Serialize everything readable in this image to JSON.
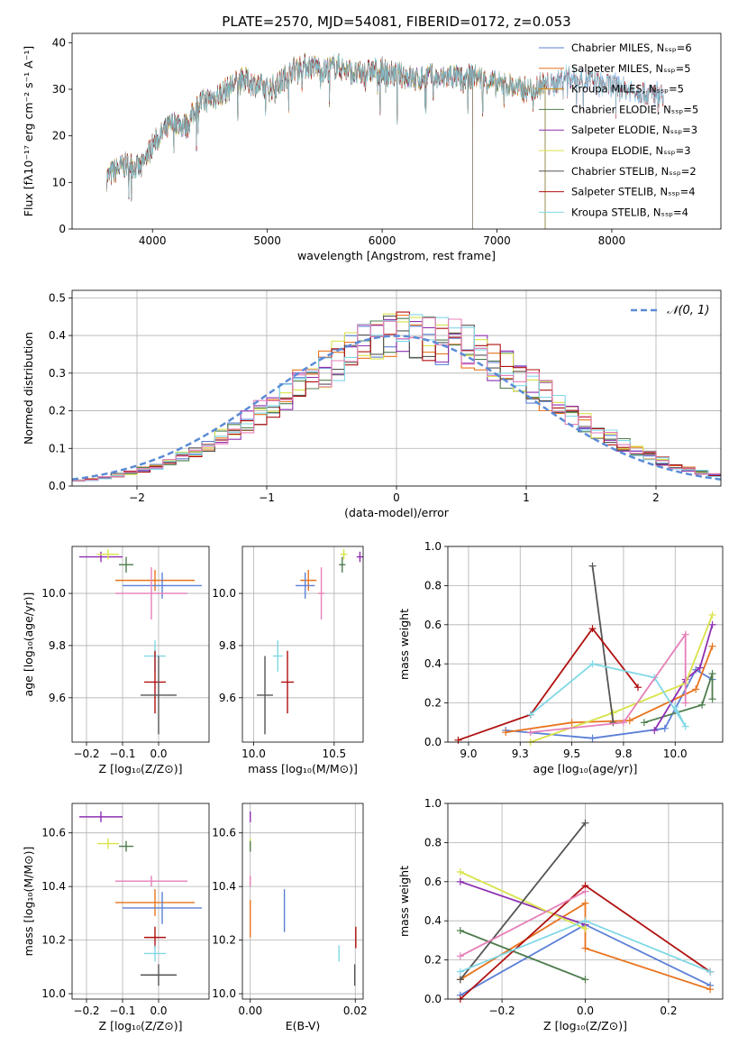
{
  "page_title": "PLATE=2570, MJD=54081, FIBERID=0172, z=0.053",
  "colors": {
    "Chabrier MILES": "#5b7fd6",
    "Salpeter MILES": "#e8741e",
    "Kroupa MILES": "#d4880a",
    "Chabrier ELODIE": "#4f7d4f",
    "Salpeter ELODIE": "#8e2fb0",
    "Kroupa ELODIE": "#d9e34a",
    "Chabrier STELIB": "#555555",
    "Salpeter STELIB": "#b01010",
    "Kroupa STELIB": "#80d8e6",
    "pink": "#e57fb8",
    "gaussian": "#5b8bd6"
  },
  "chart_data": [
    {
      "id": "spectrum",
      "type": "line",
      "title": "PLATE=2570, MJD=54081, FIBERID=0172, z=0.053",
      "xlabel": "wavelength [Angstrom, rest frame]",
      "ylabel": "Flux [fλ10⁻¹⁷ erg cm⁻² s⁻¹ A⁻¹]",
      "xlim": [
        3300,
        8950
      ],
      "ylim": [
        0,
        42
      ],
      "xticks": [
        4000,
        5000,
        6000,
        7000,
        8000
      ],
      "yticks": [
        0,
        10,
        20,
        30,
        40
      ],
      "grid": false,
      "legend_position": "top-right",
      "legend": [
        {
          "label": "Chabrier MILES, Nₛₛₚ=6",
          "color": "#5b7fd6"
        },
        {
          "label": "Salpeter MILES, Nₛₛₚ=5",
          "color": "#e8741e"
        },
        {
          "label": "Kroupa MILES, Nₛₛₚ=5",
          "color": "#d4880a"
        },
        {
          "label": "Chabrier ELODIE, Nₛₛₚ=5",
          "color": "#4f7d4f"
        },
        {
          "label": "Salpeter ELODIE, Nₛₛₚ=3",
          "color": "#8e2fb0"
        },
        {
          "label": "Kroupa ELODIE, Nₛₛₚ=3",
          "color": "#d9e34a"
        },
        {
          "label": "Chabrier STELIB, Nₛₛₚ=2",
          "color": "#555555"
        },
        {
          "label": "Salpeter STELIB, Nₛₛₚ=4",
          "color": "#b01010"
        },
        {
          "label": "Kroupa STELIB, Nₛₛₚ=4",
          "color": "#80d8e6"
        }
      ],
      "continuum": {
        "x": [
          3600,
          3700,
          3800,
          3900,
          4000,
          4100,
          4200,
          4300,
          4400,
          4500,
          4600,
          4700,
          4800,
          4900,
          5000,
          5100,
          5200,
          5300,
          5400,
          5500,
          5600,
          5700,
          5800,
          5900,
          6000,
          6100,
          6200,
          6300,
          6400,
          6500,
          6600,
          6700,
          6800,
          6900,
          7000,
          7100,
          7200,
          7300,
          7400,
          7500,
          7600,
          7700,
          7800,
          7900,
          8000,
          8100,
          8200,
          8300,
          8400,
          8500
        ],
        "y": [
          11,
          13,
          14,
          13,
          18,
          21,
          23,
          22,
          27,
          28,
          29,
          31,
          32,
          31,
          30,
          31,
          34,
          35,
          35,
          34,
          35,
          34,
          33,
          34,
          34,
          33,
          33,
          32,
          33,
          32,
          33,
          32,
          33,
          32,
          31,
          31,
          30,
          30,
          31,
          31,
          33,
          32,
          32,
          31,
          31,
          30,
          30,
          29,
          29,
          29
        ]
      },
      "spectrum_end": {
        "Kroupa STELIB": 8450,
        "Chabrier MILES": 7420,
        "Salpeter MILES": 7420,
        "Kroupa MILES": 7420,
        "Chabrier ELODIE": 6790,
        "Salpeter ELODIE": 6790,
        "Kroupa ELODIE": 6790,
        "Chabrier STELIB": 8450,
        "Salpeter STELIB": 8450
      }
    },
    {
      "id": "residuals",
      "type": "line",
      "xlabel": "(data-model)/error",
      "ylabel": "Normed distribution",
      "xlim": [
        -2.5,
        2.5
      ],
      "ylim": [
        0,
        0.52
      ],
      "xticks": [
        -2,
        -1,
        0,
        1,
        2
      ],
      "yticks": [
        0.0,
        0.1,
        0.2,
        0.3,
        0.4,
        0.5
      ],
      "grid": true,
      "legend_position": "top-right",
      "legend": [
        {
          "label": "𝒩(0, 1)",
          "color": "#5b8bd6"
        }
      ],
      "bin_width": 0.1,
      "hist_colors": [
        "#5b7fd6",
        "#e8741e",
        "#4f7d4f",
        "#8e2fb0",
        "#d9e34a",
        "#555555",
        "#b01010",
        "#80d8e6",
        "#e57fb8"
      ]
    },
    {
      "id": "age_vs_Z",
      "type": "scatter",
      "xlabel": "Z [log₁₀(Z/Z⊙)]",
      "ylabel": "age  [log₁₀(age/yr)]",
      "xlim": [
        -0.24,
        0.14
      ],
      "ylim": [
        9.43,
        10.18
      ],
      "xticks": [
        -0.2,
        -0.1,
        0.0
      ],
      "yticks": [
        9.6,
        9.8,
        10.0
      ],
      "grid": true,
      "points": [
        {
          "x": -0.16,
          "xerr": 0.06,
          "y": 10.14,
          "yerr": 0.02,
          "color": "#8e2fb0"
        },
        {
          "x": -0.14,
          "xerr": 0.03,
          "y": 10.15,
          "yerr": 0.02,
          "color": "#d9e34a"
        },
        {
          "x": -0.09,
          "xerr": 0.02,
          "y": 10.11,
          "yerr": 0.03,
          "color": "#4f7d4f"
        },
        {
          "x": -0.01,
          "xerr": 0.11,
          "y": 10.05,
          "yerr": 0.04,
          "color": "#e8741e"
        },
        {
          "x": 0.01,
          "xerr": 0.11,
          "y": 10.03,
          "yerr": 0.05,
          "color": "#5b7fd6"
        },
        {
          "x": -0.02,
          "xerr": 0.1,
          "y": 10.0,
          "yerr": 0.1,
          "color": "#e57fb8"
        },
        {
          "x": -0.01,
          "xerr": 0.03,
          "y": 9.76,
          "yerr": 0.06,
          "color": "#80d8e6"
        },
        {
          "x": -0.01,
          "xerr": 0.03,
          "y": 9.66,
          "yerr": 0.12,
          "color": "#b01010"
        },
        {
          "x": 0.0,
          "xerr": 0.05,
          "y": 9.61,
          "yerr": 0.15,
          "color": "#555555"
        }
      ]
    },
    {
      "id": "age_vs_mass",
      "type": "scatter",
      "xlabel": "mass [log₁₀(M/M⊙)]",
      "ylabel": "",
      "xlim": [
        9.93,
        10.68
      ],
      "ylim": [
        9.43,
        10.18
      ],
      "xticks": [
        10.0,
        10.5
      ],
      "yticks": [
        9.6,
        9.8,
        10.0
      ],
      "grid": true,
      "points": [
        {
          "x": 10.66,
          "xerr": 0.02,
          "y": 10.14,
          "yerr": 0.02,
          "color": "#8e2fb0"
        },
        {
          "x": 10.56,
          "xerr": 0.02,
          "y": 10.15,
          "yerr": 0.02,
          "color": "#d9e34a"
        },
        {
          "x": 10.55,
          "xerr": 0.02,
          "y": 10.11,
          "yerr": 0.03,
          "color": "#4f7d4f"
        },
        {
          "x": 10.34,
          "xerr": 0.05,
          "y": 10.05,
          "yerr": 0.04,
          "color": "#e8741e"
        },
        {
          "x": 10.32,
          "xerr": 0.06,
          "y": 10.03,
          "yerr": 0.05,
          "color": "#5b7fd6"
        },
        {
          "x": 10.42,
          "xerr": 0.02,
          "y": 10.0,
          "yerr": 0.1,
          "color": "#e57fb8"
        },
        {
          "x": 10.15,
          "xerr": 0.03,
          "y": 9.76,
          "yerr": 0.06,
          "color": "#80d8e6"
        },
        {
          "x": 10.21,
          "xerr": 0.04,
          "y": 9.66,
          "yerr": 0.12,
          "color": "#b01010"
        },
        {
          "x": 10.07,
          "xerr": 0.05,
          "y": 9.61,
          "yerr": 0.15,
          "color": "#555555"
        }
      ]
    },
    {
      "id": "massweight_vs_age",
      "type": "line",
      "xlabel": "age  [log₁₀(age/yr)]",
      "ylabel": "mass weight",
      "xlim": [
        8.9,
        10.23
      ],
      "ylim": [
        0,
        1.0
      ],
      "xticks": [
        9.0,
        9.25,
        9.5,
        9.75,
        10.0
      ],
      "yticks": [
        0.0,
        0.2,
        0.4,
        0.6,
        0.8,
        1.0
      ],
      "grid": true,
      "series": [
        {
          "color": "#5b7fd6",
          "x": [
            9.18,
            9.6,
            9.95,
            10.1,
            10.18
          ],
          "y": [
            0.06,
            0.02,
            0.07,
            0.37,
            0.32
          ]
        },
        {
          "color": "#e8741e",
          "x": [
            9.18,
            9.5,
            9.78,
            10.1,
            10.18
          ],
          "y": [
            0.05,
            0.1,
            0.11,
            0.27,
            0.49
          ]
        },
        {
          "color": "#4f7d4f",
          "x": [
            9.85,
            10.13,
            10.18,
            10.18
          ],
          "y": [
            0.1,
            0.19,
            0.35,
            0.22
          ]
        },
        {
          "color": "#8e2fb0",
          "x": [
            9.9,
            10.05,
            10.12,
            10.18
          ],
          "y": [
            0.06,
            0.32,
            0.38,
            0.6
          ]
        },
        {
          "color": "#d9e34a",
          "x": [
            9.3,
            9.7,
            10.05,
            10.18
          ],
          "y": [
            0.0,
            0.15,
            0.3,
            0.65
          ]
        },
        {
          "color": "#555555",
          "x": [
            9.6,
            9.7
          ],
          "y": [
            0.9,
            0.1
          ]
        },
        {
          "color": "#b01010",
          "x": [
            8.95,
            9.3,
            9.6,
            9.82
          ],
          "y": [
            0.01,
            0.14,
            0.58,
            0.28
          ]
        },
        {
          "color": "#80d8e6",
          "x": [
            9.3,
            9.6,
            9.9,
            10.05,
            10.0
          ],
          "y": [
            0.14,
            0.4,
            0.33,
            0.08,
            0.18
          ]
        },
        {
          "color": "#e57fb8",
          "x": [
            9.3,
            9.75,
            10.05,
            10.05
          ],
          "y": [
            0.05,
            0.1,
            0.55,
            0.2
          ]
        }
      ]
    },
    {
      "id": "mass_vs_Z",
      "type": "scatter",
      "xlabel": "Z [log₁₀(Z/Z⊙)]",
      "ylabel": "mass [log₁₀(M/M⊙)]",
      "xlim": [
        -0.24,
        0.14
      ],
      "ylim": [
        9.98,
        10.71
      ],
      "xticks": [
        -0.2,
        -0.1,
        0.0
      ],
      "yticks": [
        10.0,
        10.2,
        10.4,
        10.6
      ],
      "grid": true,
      "points": [
        {
          "x": -0.16,
          "xerr": 0.06,
          "y": 10.66,
          "yerr": 0.02,
          "color": "#8e2fb0"
        },
        {
          "x": -0.14,
          "xerr": 0.03,
          "y": 10.56,
          "yerr": 0.02,
          "color": "#d9e34a"
        },
        {
          "x": -0.09,
          "xerr": 0.02,
          "y": 10.55,
          "yerr": 0.02,
          "color": "#4f7d4f"
        },
        {
          "x": -0.02,
          "xerr": 0.1,
          "y": 10.42,
          "yerr": 0.02,
          "color": "#e57fb8"
        },
        {
          "x": -0.01,
          "xerr": 0.11,
          "y": 10.34,
          "yerr": 0.05,
          "color": "#e8741e"
        },
        {
          "x": 0.01,
          "xerr": 0.11,
          "y": 10.32,
          "yerr": 0.06,
          "color": "#5b7fd6"
        },
        {
          "x": -0.01,
          "xerr": 0.03,
          "y": 10.21,
          "yerr": 0.04,
          "color": "#b01010"
        },
        {
          "x": -0.01,
          "xerr": 0.03,
          "y": 10.15,
          "yerr": 0.03,
          "color": "#80d8e6"
        },
        {
          "x": 0.0,
          "xerr": 0.05,
          "y": 10.07,
          "yerr": 0.04,
          "color": "#555555"
        }
      ]
    },
    {
      "id": "mass_vs_EBV",
      "type": "scatter",
      "xlabel": "E(B-V)",
      "ylabel": "",
      "xlim": [
        -0.0015,
        0.0215
      ],
      "ylim": [
        9.98,
        10.71
      ],
      "xticks": [
        0.0,
        0.02
      ],
      "yticks": [
        10.0,
        10.2,
        10.4,
        10.6
      ],
      "grid": true,
      "points": [
        {
          "x": 0.0,
          "xerr": 0.0,
          "y": 10.66,
          "yerr": 0.02,
          "color": "#8e2fb0"
        },
        {
          "x": 0.0,
          "xerr": 0.0,
          "y": 10.56,
          "yerr": 0.02,
          "color": "#d9e34a"
        },
        {
          "x": 0.0,
          "xerr": 0.0,
          "y": 10.55,
          "yerr": 0.02,
          "color": "#4f7d4f"
        },
        {
          "x": 0.0,
          "xerr": 0.0,
          "y": 10.42,
          "yerr": 0.02,
          "color": "#e57fb8"
        },
        {
          "x": 0.0,
          "xerr": 0.0,
          "y": 10.28,
          "yerr": 0.07,
          "color": "#e8741e"
        },
        {
          "x": 0.0065,
          "xerr": 0.0,
          "y": 10.31,
          "yerr": 0.08,
          "color": "#5b7fd6"
        },
        {
          "x": 0.0201,
          "xerr": 0.0,
          "y": 10.21,
          "yerr": 0.04,
          "color": "#b01010"
        },
        {
          "x": 0.0169,
          "xerr": 0.0,
          "y": 10.15,
          "yerr": 0.03,
          "color": "#80d8e6"
        },
        {
          "x": 0.0199,
          "xerr": 0.0,
          "y": 10.07,
          "yerr": 0.04,
          "color": "#555555"
        }
      ]
    },
    {
      "id": "massweight_vs_Z",
      "type": "line",
      "xlabel": "Z [log₁₀(Z/Z⊙)]",
      "ylabel": "mass weight",
      "xlim": [
        -0.33,
        0.33
      ],
      "ylim": [
        0,
        1.0
      ],
      "xticks": [
        -0.2,
        0.0,
        0.2
      ],
      "yticks": [
        0.0,
        0.2,
        0.4,
        0.6,
        0.8,
        1.0
      ],
      "grid": true,
      "series": [
        {
          "color": "#5b7fd6",
          "x": [
            -0.3,
            0.0,
            0.3
          ],
          "y": [
            0.02,
            0.38,
            0.07
          ]
        },
        {
          "color": "#e8741e",
          "x": [
            -0.3,
            0.0,
            0.0,
            0.3
          ],
          "y": [
            0.1,
            0.49,
            0.26,
            0.05
          ]
        },
        {
          "color": "#4f7d4f",
          "x": [
            -0.3,
            0.0
          ],
          "y": [
            0.35,
            0.1
          ]
        },
        {
          "color": "#8e2fb0",
          "x": [
            -0.3,
            0.0
          ],
          "y": [
            0.6,
            0.38
          ]
        },
        {
          "color": "#d9e34a",
          "x": [
            -0.3,
            0.0
          ],
          "y": [
            0.65,
            0.36
          ]
        },
        {
          "color": "#555555",
          "x": [
            -0.3,
            0.0
          ],
          "y": [
            0.1,
            0.9
          ]
        },
        {
          "color": "#b01010",
          "x": [
            -0.3,
            0.0,
            0.3
          ],
          "y": [
            0.0,
            0.58,
            0.14
          ]
        },
        {
          "color": "#80d8e6",
          "x": [
            -0.3,
            0.0,
            0.3
          ],
          "y": [
            0.14,
            0.4,
            0.14
          ]
        },
        {
          "color": "#e57fb8",
          "x": [
            -0.3,
            0.0
          ],
          "y": [
            0.22,
            0.55
          ]
        }
      ]
    }
  ]
}
